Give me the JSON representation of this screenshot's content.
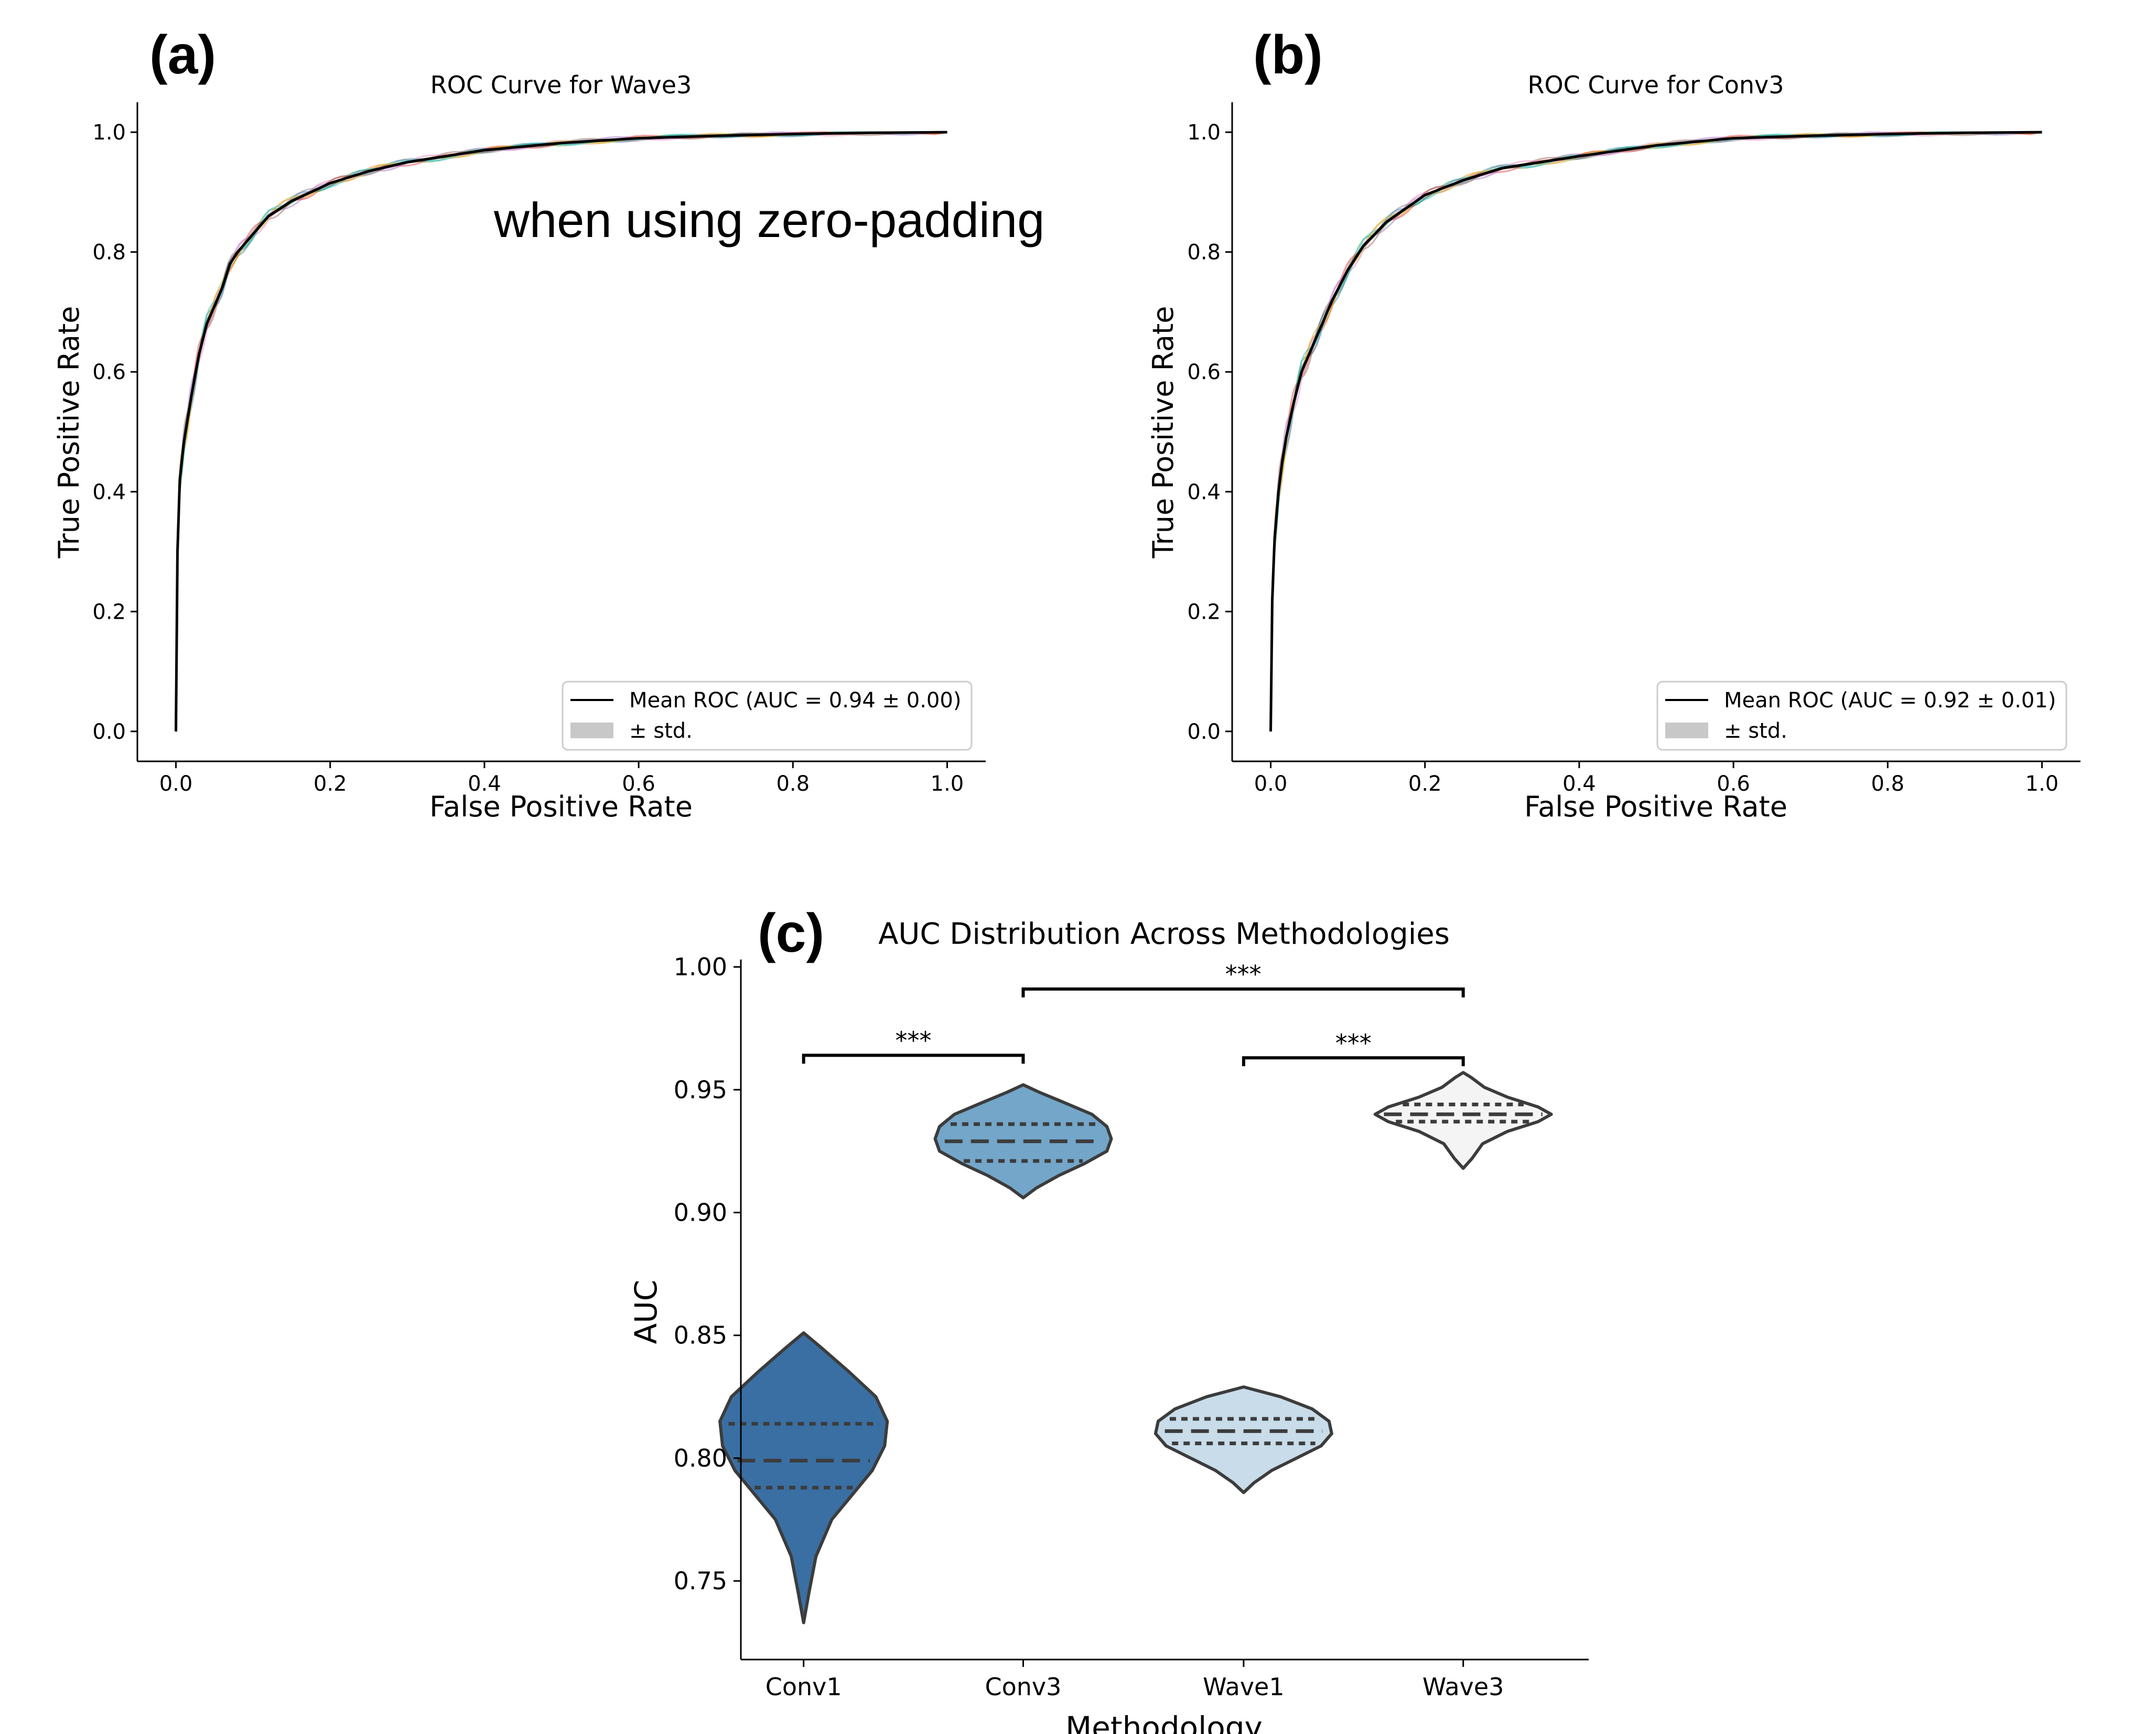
{
  "colors": {
    "mean_line": "#000000",
    "std_fill": "#c8c8c8",
    "fold_colors": [
      "#1f77b4",
      "#ff7f0e",
      "#2ca02c",
      "#d62728",
      "#9467bd",
      "#8c564b",
      "#e377c2",
      "#7f7f7f",
      "#bcbd22",
      "#17becf"
    ],
    "violin": {
      "Conv1": "#3a6fa3",
      "Conv3": "#73a6c9",
      "Wave1": "#c8dcea",
      "Wave3": "#f4f4f4"
    },
    "violin_edge": "#3c3c3c"
  },
  "chart_data": [
    {
      "panel": "(a)",
      "type": "line",
      "title": "ROC Curve for Wave3",
      "xlabel": "False Positive Rate",
      "ylabel": "True Positive Rate",
      "xlim": [
        -0.05,
        1.05
      ],
      "ylim": [
        -0.05,
        1.05
      ],
      "xticks": [
        "0.0",
        "0.2",
        "0.4",
        "0.6",
        "0.8",
        "1.0"
      ],
      "yticks": [
        "0.0",
        "0.2",
        "0.4",
        "0.6",
        "0.8",
        "1.0"
      ],
      "annotation": "when using zero-padding",
      "legend": {
        "placement": "lower-right",
        "entries": [
          "Mean ROC (AUC = 0.94 ± 0.00)",
          "± std."
        ]
      },
      "mean_roc": {
        "x": [
          0,
          0.002,
          0.005,
          0.01,
          0.015,
          0.02,
          0.03,
          0.04,
          0.05,
          0.06,
          0.07,
          0.08,
          0.1,
          0.12,
          0.15,
          0.2,
          0.25,
          0.3,
          0.4,
          0.5,
          0.6,
          0.7,
          0.8,
          0.9,
          1.0
        ],
        "y": [
          0,
          0.3,
          0.42,
          0.48,
          0.52,
          0.56,
          0.63,
          0.68,
          0.71,
          0.74,
          0.78,
          0.8,
          0.83,
          0.86,
          0.885,
          0.915,
          0.935,
          0.95,
          0.97,
          0.982,
          0.99,
          0.994,
          0.997,
          0.999,
          1.0
        ]
      }
    },
    {
      "panel": "(b)",
      "type": "line",
      "title": "ROC Curve for Conv3",
      "xlabel": "False Positive Rate",
      "ylabel": "True Positive Rate",
      "xlim": [
        -0.05,
        1.05
      ],
      "ylim": [
        -0.05,
        1.05
      ],
      "xticks": [
        "0.0",
        "0.2",
        "0.4",
        "0.6",
        "0.8",
        "1.0"
      ],
      "yticks": [
        "0.0",
        "0.2",
        "0.4",
        "0.6",
        "0.8",
        "1.0"
      ],
      "legend": {
        "placement": "lower-right",
        "entries": [
          "Mean ROC (AUC = 0.92 ± 0.01)",
          "± std."
        ]
      },
      "mean_roc": {
        "x": [
          0,
          0.002,
          0.005,
          0.01,
          0.015,
          0.02,
          0.03,
          0.04,
          0.05,
          0.06,
          0.08,
          0.1,
          0.12,
          0.15,
          0.2,
          0.25,
          0.3,
          0.4,
          0.5,
          0.6,
          0.7,
          0.8,
          0.9,
          1.0
        ],
        "y": [
          0,
          0.22,
          0.32,
          0.4,
          0.45,
          0.49,
          0.55,
          0.6,
          0.63,
          0.66,
          0.72,
          0.77,
          0.81,
          0.85,
          0.895,
          0.92,
          0.94,
          0.96,
          0.978,
          0.99,
          0.994,
          0.997,
          0.999,
          1.0
        ]
      }
    },
    {
      "panel": "(c)",
      "type": "violin",
      "title": "AUC Distribution Across Methodologies",
      "xlabel": "Methodology",
      "ylabel": "AUC",
      "categories": [
        "Conv1",
        "Conv3",
        "Wave1",
        "Wave3"
      ],
      "ylim": [
        0.718,
        1.003
      ],
      "yticks": [
        "0.75",
        "0.80",
        "0.85",
        "0.90",
        "0.95",
        "1.00"
      ],
      "violins": [
        {
          "name": "Conv1",
          "min": 0.733,
          "max": 0.851,
          "q1": 0.788,
          "median": 0.799,
          "q3": 0.814,
          "profile": [
            [
              0.733,
              0
            ],
            [
              0.745,
              0.06
            ],
            [
              0.76,
              0.14
            ],
            [
              0.775,
              0.32
            ],
            [
              0.785,
              0.55
            ],
            [
              0.795,
              0.78
            ],
            [
              0.805,
              0.92
            ],
            [
              0.815,
              0.95
            ],
            [
              0.825,
              0.82
            ],
            [
              0.835,
              0.52
            ],
            [
              0.845,
              0.2
            ],
            [
              0.851,
              0
            ]
          ]
        },
        {
          "name": "Conv3",
          "min": 0.906,
          "max": 0.952,
          "q1": 0.921,
          "median": 0.929,
          "q3": 0.936,
          "profile": [
            [
              0.906,
              0
            ],
            [
              0.91,
              0.15
            ],
            [
              0.915,
              0.4
            ],
            [
              0.92,
              0.7
            ],
            [
              0.925,
              0.95
            ],
            [
              0.93,
              1.0
            ],
            [
              0.935,
              0.95
            ],
            [
              0.94,
              0.78
            ],
            [
              0.945,
              0.45
            ],
            [
              0.949,
              0.18
            ],
            [
              0.952,
              0
            ]
          ]
        },
        {
          "name": "Wave1",
          "min": 0.786,
          "max": 0.829,
          "q1": 0.806,
          "median": 0.811,
          "q3": 0.816,
          "profile": [
            [
              0.786,
              0
            ],
            [
              0.79,
              0.12
            ],
            [
              0.795,
              0.32
            ],
            [
              0.8,
              0.6
            ],
            [
              0.805,
              0.88
            ],
            [
              0.81,
              1.0
            ],
            [
              0.815,
              0.97
            ],
            [
              0.82,
              0.78
            ],
            [
              0.825,
              0.42
            ],
            [
              0.829,
              0
            ]
          ]
        },
        {
          "name": "Wave3",
          "min": 0.918,
          "max": 0.957,
          "q1": 0.937,
          "median": 0.94,
          "q3": 0.944,
          "profile": [
            [
              0.918,
              0
            ],
            [
              0.922,
              0.1
            ],
            [
              0.928,
              0.22
            ],
            [
              0.933,
              0.5
            ],
            [
              0.937,
              0.85
            ],
            [
              0.94,
              1.0
            ],
            [
              0.943,
              0.85
            ],
            [
              0.947,
              0.5
            ],
            [
              0.951,
              0.24
            ],
            [
              0.955,
              0.09
            ],
            [
              0.957,
              0
            ]
          ]
        }
      ],
      "significance": [
        {
          "from": "Conv1",
          "to": "Conv3",
          "level": 0.964,
          "label": "***"
        },
        {
          "from": "Wave1",
          "to": "Wave3",
          "level": 0.963,
          "label": "***"
        },
        {
          "from": "Conv3",
          "to": "Wave3",
          "level": 0.991,
          "label": "***"
        }
      ]
    }
  ]
}
